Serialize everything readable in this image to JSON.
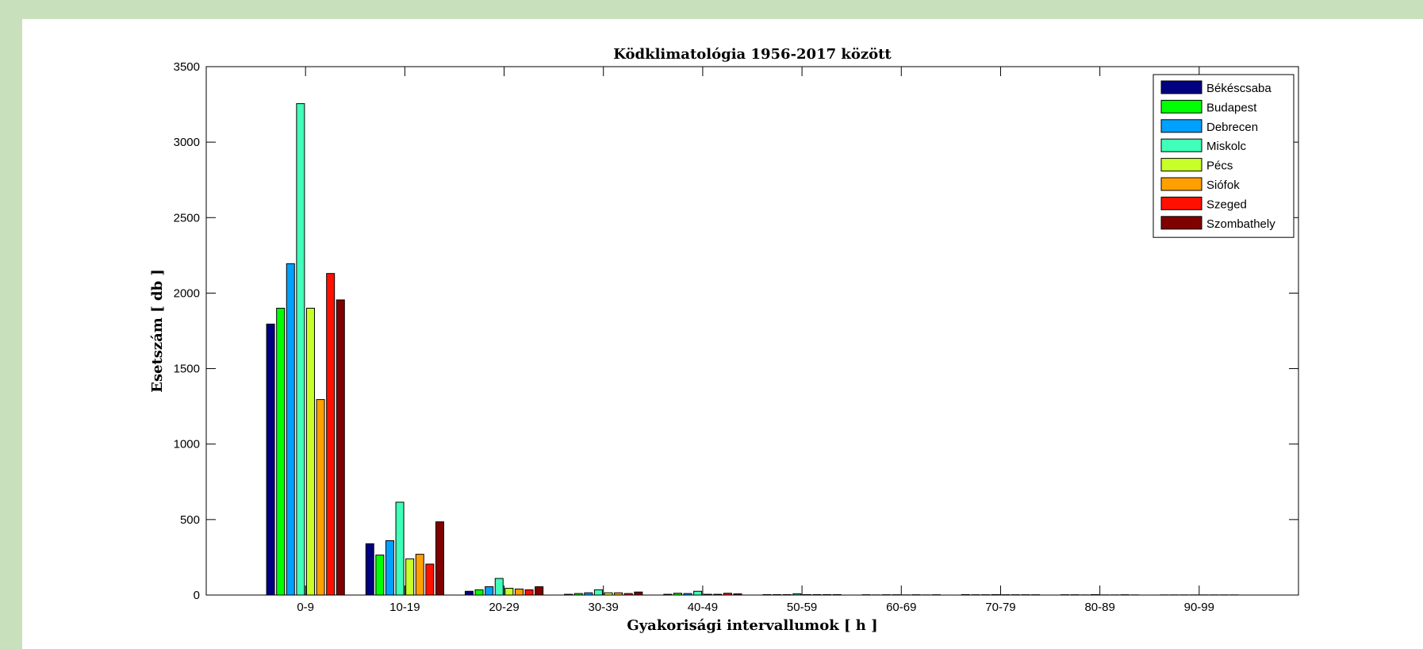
{
  "chart_data": {
    "type": "bar",
    "title": "Ködklimatológia 1956-2017 között",
    "xlabel": "Gyakorisági intervallumok [ h ]",
    "ylabel": "Esetszám [ db ]",
    "ylim": [
      0,
      3500
    ],
    "yticks": [
      0,
      500,
      1000,
      1500,
      2000,
      2500,
      3000,
      3500
    ],
    "grid": false,
    "legend_position": "top-right",
    "categories": [
      "0-9",
      "10-19",
      "20-29",
      "30-39",
      "40-49",
      "50-59",
      "60-69",
      "70-79",
      "80-89",
      "90-99"
    ],
    "series": [
      {
        "name": "Békéscsaba",
        "color": "#000080",
        "values": [
          1795,
          340,
          25,
          5,
          5,
          3,
          2,
          3,
          2,
          1
        ]
      },
      {
        "name": "Budapest",
        "color": "#00ff00",
        "values": [
          1900,
          265,
          35,
          10,
          12,
          3,
          1,
          2,
          2,
          1
        ]
      },
      {
        "name": "Debrecen",
        "color": "#00a0ff",
        "values": [
          2195,
          360,
          55,
          15,
          10,
          3,
          2,
          2,
          1,
          1
        ]
      },
      {
        "name": "Miskolc",
        "color": "#40ffb8",
        "values": [
          3255,
          615,
          110,
          35,
          25,
          8,
          2,
          3,
          3,
          1
        ]
      },
      {
        "name": "Pécs",
        "color": "#c8ff28",
        "values": [
          1900,
          240,
          45,
          15,
          5,
          3,
          1,
          2,
          1,
          1
        ]
      },
      {
        "name": "Siófok",
        "color": "#ffa000",
        "values": [
          1295,
          270,
          40,
          15,
          5,
          3,
          2,
          2,
          1,
          1
        ]
      },
      {
        "name": "Szeged",
        "color": "#ff1000",
        "values": [
          2130,
          205,
          35,
          10,
          12,
          3,
          1,
          2,
          2,
          1
        ]
      },
      {
        "name": "Szombathely",
        "color": "#800000",
        "values": [
          1955,
          485,
          55,
          20,
          8,
          3,
          2,
          2,
          1,
          1
        ]
      }
    ]
  }
}
